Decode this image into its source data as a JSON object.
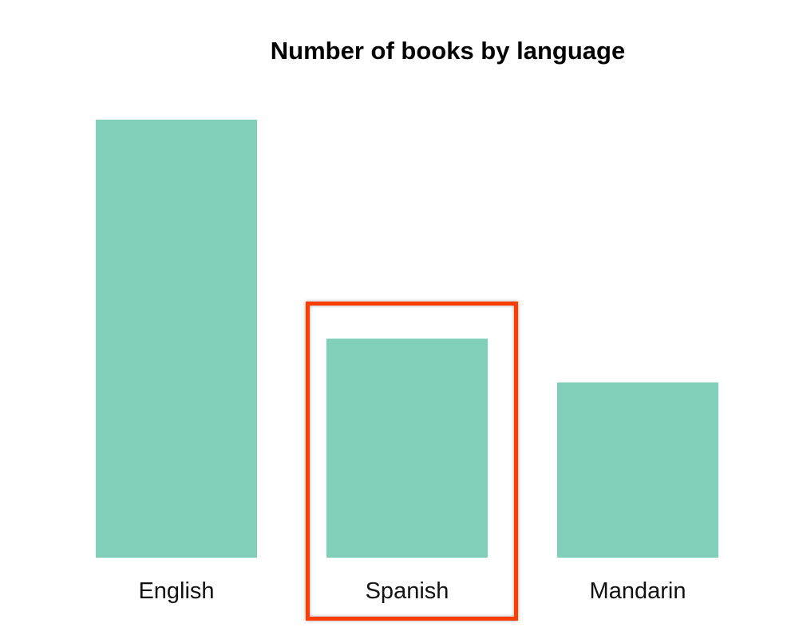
{
  "chart_data": {
    "type": "bar",
    "title": "Number of books by language",
    "categories": [
      "English",
      "Spanish",
      "Mandarin"
    ],
    "values": [
      10,
      5,
      4
    ],
    "xlabel": "",
    "ylabel": "",
    "ylim": [
      0,
      10
    ],
    "grid": false,
    "bar_color": "#80d0b9",
    "highlight": {
      "category": "Spanish",
      "color": "#ff3d00"
    }
  }
}
